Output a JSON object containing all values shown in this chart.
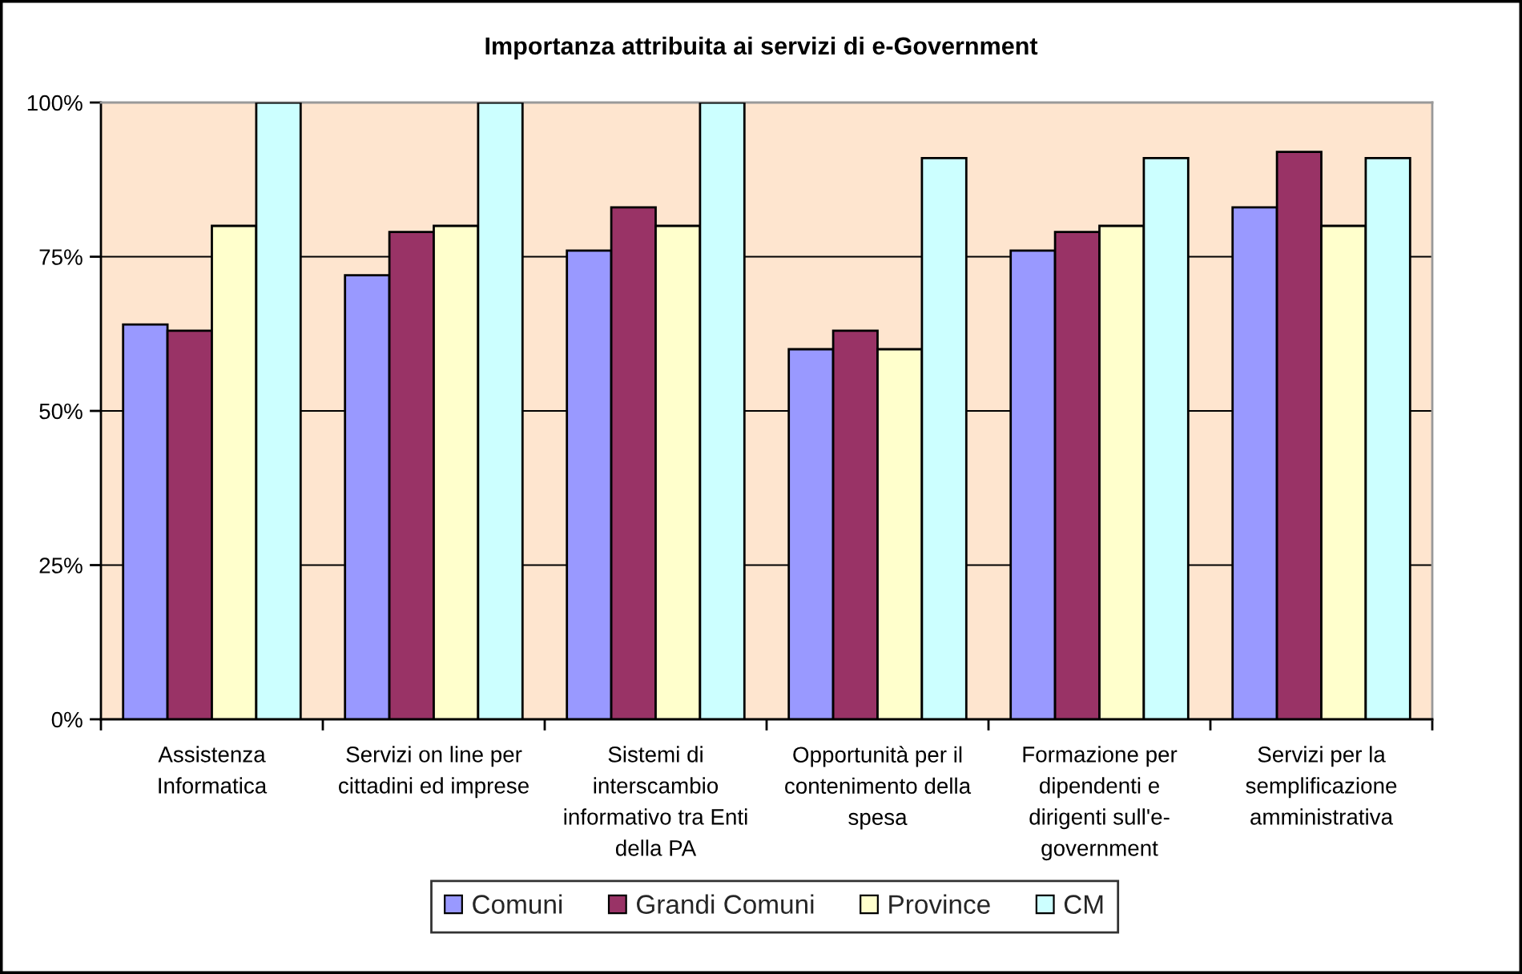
{
  "chart_data": {
    "type": "bar",
    "title": "Importanza attribuita ai servizi di e-Government",
    "categories": [
      "Assistenza\nInformatica",
      "Servizi on line per\ncittadini ed imprese",
      "Sistemi di\ninterscambio\ninformativo tra Enti\ndella PA",
      "Opportunità per il\ncontenimento della\nspesa",
      "Formazione per\ndipendenti e\ndirigenti sull'e-\ngovernment",
      "Servizi per la\nsemplificazione\namministrativa"
    ],
    "series": [
      {
        "name": "Comuni",
        "color": "#9999ff",
        "values": [
          64,
          72,
          76,
          60,
          76,
          83
        ]
      },
      {
        "name": "Grandi Comuni",
        "color": "#993366",
        "values": [
          63,
          79,
          83,
          63,
          79,
          92
        ]
      },
      {
        "name": "Province",
        "color": "#ffffcc",
        "values": [
          80,
          80,
          80,
          60,
          80,
          80
        ]
      },
      {
        "name": "CM",
        "color": "#ccffff",
        "values": [
          100,
          100,
          100,
          91,
          91,
          91
        ]
      }
    ],
    "ylim": [
      0,
      100
    ],
    "yticks": [
      {
        "value": 0,
        "label": "0%"
      },
      {
        "value": 25,
        "label": "25%"
      },
      {
        "value": 50,
        "label": "50%"
      },
      {
        "value": 75,
        "label": "75%"
      },
      {
        "value": 100,
        "label": "100%"
      }
    ],
    "grid": "y",
    "legend": "bottom"
  }
}
